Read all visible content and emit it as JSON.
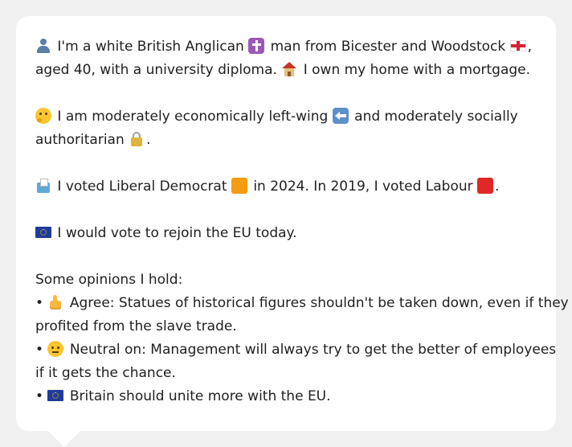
{
  "profile": {
    "line1_a": "I'm a white British Anglican",
    "line1_b": "man from Bicester and Woodstock",
    "line1_c": ",",
    "line2_a": "aged 40, with a university diploma.",
    "line2_b": "I own my home with a mortgage.",
    "line3": "I am moderately economically left-wing",
    "line3_b": "and moderately socially",
    "line4": "authoritarian",
    "line4_b": ".",
    "line5_a": "I voted Liberal Democrat",
    "line5_b": "in 2024. In 2019, I voted Labour",
    "line5_c": ".",
    "line6": "I would vote to rejoin the EU today.",
    "opinions_heading": "Some opinions I hold:",
    "bullet": "•",
    "opinion1_a": "Agree: Statues of historical figures shouldn't be taken down, even if they",
    "opinion1_b": "profited from the slave trade.",
    "opinion2_a": "Neutral on: Management will always try to get the better of employees",
    "opinion2_b": "if it gets the chance.",
    "opinion3": "Britain should unite more with the EU."
  },
  "icons": {
    "person": "person-icon",
    "cross": "latin-cross-icon",
    "flag_england": "england-flag-icon",
    "house": "house-icon",
    "thinking": "thinking-face-icon",
    "left_arrow": "left-arrow-icon",
    "lock": "lock-icon",
    "ballot": "ballot-box-icon",
    "orange_square": "orange-square-icon",
    "red_square": "red-square-icon",
    "eu_flag": "eu-flag-icon",
    "thumbs_up": "thumbs-up-icon",
    "neutral_face": "neutral-face-icon"
  },
  "colors": {
    "card_background": "#ffffff",
    "page_background": "#f0f0f0",
    "text": "#1f1f1f",
    "libdem_orange": "#f39c12",
    "labour_red": "#e02828",
    "eu_blue": "#1f3c9b"
  }
}
